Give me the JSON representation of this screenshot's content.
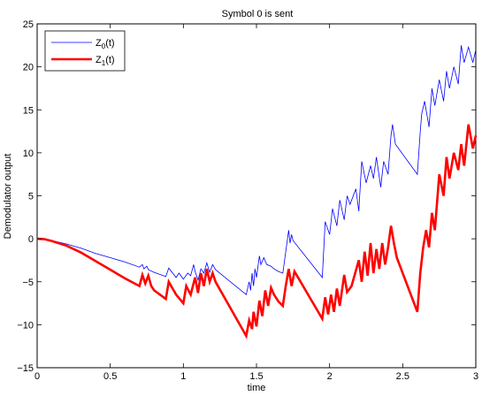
{
  "chart_data": {
    "type": "line",
    "title": "Symbol 0 is sent",
    "xlabel": "time",
    "ylabel": "Demodulator output",
    "xlim": [
      0,
      3
    ],
    "ylim": [
      -15,
      25
    ],
    "xticks": [
      0,
      0.5,
      1,
      1.5,
      2,
      2.5,
      3
    ],
    "xtick_labels": [
      "0",
      "0.5",
      "1",
      "1.5",
      "2",
      "2.5",
      "3"
    ],
    "yticks": [
      -15,
      -10,
      -5,
      0,
      5,
      10,
      15,
      20,
      25
    ],
    "ytick_labels": [
      "−15",
      "−10",
      "−5",
      "0",
      "5",
      "10",
      "15",
      "20",
      "25"
    ],
    "grid": false,
    "legend_position": "top-left",
    "series": [
      {
        "name": "Z0(t)",
        "legend_main": "Z",
        "legend_sub": "0",
        "legend_tail": "(t)",
        "color": "#0000ff",
        "width": "thin",
        "x": [
          0,
          0.05,
          0.1,
          0.2,
          0.3,
          0.4,
          0.5,
          0.6,
          0.7,
          0.72,
          0.73,
          0.75,
          0.76,
          0.8,
          0.88,
          0.9,
          0.95,
          0.97,
          1.0,
          1.03,
          1.05,
          1.07,
          1.08,
          1.1,
          1.12,
          1.14,
          1.16,
          1.18,
          1.2,
          1.22,
          1.43,
          1.45,
          1.46,
          1.47,
          1.48,
          1.49,
          1.5,
          1.52,
          1.53,
          1.55,
          1.57,
          1.6,
          1.62,
          1.65,
          1.68,
          1.7,
          1.72,
          1.73,
          1.74,
          1.75,
          1.95,
          1.97,
          2.0,
          2.02,
          2.05,
          2.07,
          2.1,
          2.12,
          2.14,
          2.18,
          2.2,
          2.22,
          2.25,
          2.28,
          2.3,
          2.32,
          2.35,
          2.37,
          2.4,
          2.42,
          2.43,
          2.45,
          2.6,
          2.62,
          2.63,
          2.65,
          2.68,
          2.7,
          2.72,
          2.75,
          2.78,
          2.8,
          2.82,
          2.85,
          2.88,
          2.9,
          2.92,
          2.95,
          2.98,
          3.0
        ],
        "y": [
          0,
          -0.05,
          -0.2,
          -0.6,
          -1.1,
          -1.7,
          -2.2,
          -2.7,
          -3.3,
          -3.0,
          -3.5,
          -3.2,
          -3.6,
          -3.9,
          -4.4,
          -3.4,
          -4.5,
          -4.0,
          -4.7,
          -4.0,
          -4.3,
          -3.0,
          -3.8,
          -4.8,
          -3.5,
          -4.0,
          -2.8,
          -3.9,
          -3.0,
          -3.6,
          -6.5,
          -5.0,
          -6.0,
          -4.0,
          -5.5,
          -3.5,
          -4.5,
          -2.0,
          -3.0,
          -2.2,
          -3.0,
          -3.2,
          -3.5,
          -3.8,
          -4.0,
          -1.5,
          1.0,
          -0.5,
          0.5,
          -0.2,
          -4.5,
          2.0,
          0.5,
          3.5,
          1.5,
          4.5,
          2.2,
          5.0,
          4.0,
          5.8,
          3.2,
          9.0,
          6.5,
          8.5,
          7.0,
          9.5,
          6.0,
          9.0,
          7.5,
          12.0,
          13.3,
          11.0,
          7.5,
          12.5,
          14.5,
          16.0,
          13.0,
          17.5,
          15.5,
          18.5,
          16.0,
          19.5,
          17.5,
          20.0,
          18.0,
          22.5,
          20.5,
          22.3,
          20.5,
          22.0
        ]
      },
      {
        "name": "Z1(t)",
        "legend_main": "Z",
        "legend_sub": "1",
        "legend_tail": "(t)",
        "color": "#ff0000",
        "width": "thick",
        "x": [
          0,
          0.05,
          0.1,
          0.2,
          0.3,
          0.4,
          0.5,
          0.6,
          0.7,
          0.72,
          0.74,
          0.76,
          0.78,
          0.8,
          0.88,
          0.9,
          0.95,
          1.0,
          1.02,
          1.05,
          1.08,
          1.1,
          1.12,
          1.14,
          1.16,
          1.18,
          1.2,
          1.22,
          1.43,
          1.45,
          1.47,
          1.48,
          1.5,
          1.52,
          1.54,
          1.56,
          1.58,
          1.6,
          1.62,
          1.65,
          1.68,
          1.7,
          1.72,
          1.74,
          1.76,
          1.95,
          1.97,
          1.99,
          2.01,
          2.03,
          2.05,
          2.07,
          2.1,
          2.12,
          2.15,
          2.2,
          2.22,
          2.24,
          2.26,
          2.28,
          2.3,
          2.32,
          2.34,
          2.36,
          2.38,
          2.4,
          2.42,
          2.44,
          2.46,
          2.6,
          2.62,
          2.64,
          2.66,
          2.68,
          2.7,
          2.72,
          2.75,
          2.78,
          2.8,
          2.82,
          2.85,
          2.88,
          2.9,
          2.92,
          2.95,
          2.98,
          3.0
        ],
        "y": [
          0,
          -0.05,
          -0.25,
          -0.8,
          -1.6,
          -2.6,
          -3.6,
          -4.6,
          -5.5,
          -4.2,
          -5.2,
          -4.3,
          -5.5,
          -6.0,
          -7.0,
          -5.0,
          -6.5,
          -7.5,
          -5.5,
          -6.5,
          -4.5,
          -6.3,
          -4.0,
          -5.5,
          -3.5,
          -5.0,
          -4.0,
          -5.0,
          -11.3,
          -9.5,
          -10.5,
          -8.5,
          -10.2,
          -7.2,
          -9.0,
          -6.0,
          -7.8,
          -5.7,
          -6.5,
          -7.3,
          -7.8,
          -5.5,
          -3.5,
          -5.5,
          -3.8,
          -9.3,
          -6.8,
          -8.8,
          -6.5,
          -8.5,
          -5.8,
          -7.8,
          -4.2,
          -6.2,
          -5.5,
          -2.5,
          -5.0,
          -1.5,
          -4.3,
          -0.5,
          -4.0,
          -1.2,
          -3.5,
          -0.5,
          -3.0,
          -1.0,
          1.5,
          -0.5,
          -2.2,
          -8.5,
          -4.0,
          -1.0,
          1.0,
          -1.0,
          3.0,
          1.0,
          7.5,
          5.0,
          9.5,
          7.0,
          10.0,
          8.0,
          11.0,
          8.5,
          13.3,
          10.5,
          12.0
        ]
      }
    ]
  }
}
